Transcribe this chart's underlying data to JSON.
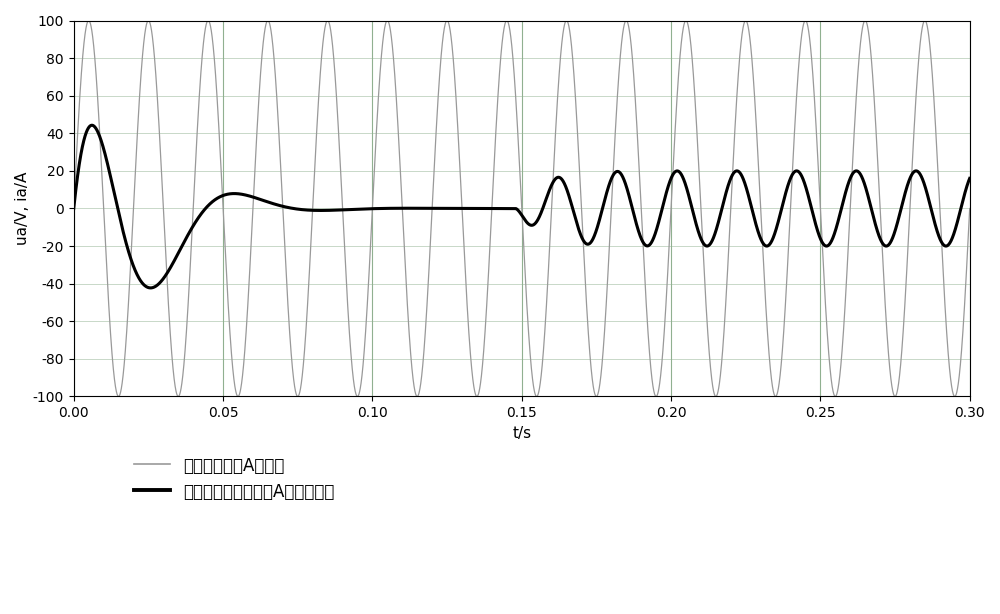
{
  "title": "",
  "xlabel": "t/s",
  "ylabel": "ua/V, ia/A",
  "xlim": [
    0,
    0.3
  ],
  "ylim": [
    -100,
    100
  ],
  "xticks": [
    0,
    0.05,
    0.1,
    0.15,
    0.2,
    0.25,
    0.3
  ],
  "yticks": [
    -100,
    -80,
    -60,
    -40,
    -20,
    0,
    20,
    40,
    60,
    80,
    100
  ],
  "voltage_amplitude": 100,
  "voltage_frequency": 50,
  "current_transient_peak": 67,
  "current_transient_tau": 0.012,
  "current_transient_omega_hz": 17,
  "current_steady_amplitude": 20,
  "current_steady_frequency": 50,
  "current_switch_time": 0.148,
  "voltage_color": "#999999",
  "current_color": "#000000",
  "voltage_linewidth": 0.9,
  "current_linewidth": 2.2,
  "grid_color_h": "#c8d8c8",
  "grid_color_v": "#90b090",
  "background_color": "#ffffff",
  "legend1": "整流器交流侧A相电压",
  "legend2": "空载时整流器交流侧A相启动电流",
  "legend_thin_lw": 1.2,
  "legend_thick_lw": 2.8,
  "figwidth": 10.0,
  "figheight": 6.14,
  "dpi": 100
}
